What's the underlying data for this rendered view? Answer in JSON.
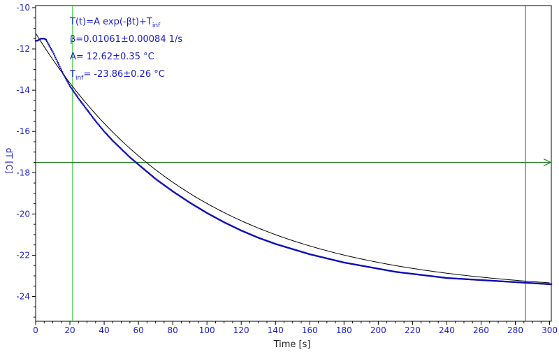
{
  "chart_data": {
    "type": "scatter",
    "xlabel": "Time [s]",
    "ylabel": "dT [C]",
    "xlim": [
      0,
      301
    ],
    "ylim": [
      -25.2,
      -9.9
    ],
    "xticks": [
      0,
      20,
      40,
      60,
      80,
      100,
      120,
      140,
      160,
      180,
      200,
      220,
      240,
      260,
      280,
      300
    ],
    "yticks": [
      -24,
      -22,
      -20,
      -18,
      -16,
      -14,
      -12,
      -10
    ],
    "grid": false,
    "legend": "none",
    "fit": {
      "model": "T(t)=A exp(-βt)+T_inf",
      "beta": 0.01061,
      "A": 12.62,
      "T_inf": -23.86
    },
    "annotations": [
      {
        "text": "T(t)=A exp(-βt)+T",
        "sub": "inf",
        "after": ""
      },
      {
        "text": "β=0.01061±0.00084 1/s",
        "sub": "",
        "after": ""
      },
      {
        "text": "A= 12.62±0.35 °C",
        "sub": "",
        "after": ""
      },
      {
        "text": "T",
        "sub": "inf",
        "after": "= -23.86±0.26 °C"
      }
    ],
    "series": [
      {
        "x": [
          0,
          1,
          2,
          3,
          4,
          5,
          6,
          7,
          8,
          9,
          10,
          12,
          14,
          16,
          18,
          20,
          25,
          30,
          35,
          40,
          45,
          50,
          55,
          60,
          65,
          70,
          80,
          90,
          100,
          110,
          120,
          130,
          140,
          150,
          160,
          170,
          180,
          190,
          200,
          210,
          220,
          230,
          240,
          250,
          260,
          270,
          280,
          290,
          300
        ],
        "values": [
          -11.6,
          -11.6,
          -11.55,
          -11.5,
          -11.5,
          -11.5,
          -11.55,
          -11.7,
          -11.85,
          -12.0,
          -12.15,
          -12.5,
          -12.85,
          -13.2,
          -13.5,
          -13.8,
          -14.4,
          -14.95,
          -15.5,
          -16.0,
          -16.45,
          -16.85,
          -17.25,
          -17.6,
          -17.95,
          -18.3,
          -18.9,
          -19.45,
          -19.95,
          -20.4,
          -20.8,
          -21.15,
          -21.45,
          -21.7,
          -21.95,
          -22.15,
          -22.35,
          -22.5,
          -22.65,
          -22.8,
          -22.9,
          -23.0,
          -23.1,
          -23.15,
          -23.2,
          -23.25,
          -23.3,
          -23.35,
          -23.4
        ],
        "color": "#0a0ab4"
      }
    ],
    "fit_line_color": "#000000",
    "cursors": [
      {
        "orientation": "vertical",
        "x": 21.5,
        "color": "#33cc33"
      },
      {
        "orientation": "vertical",
        "x": 286,
        "color": "#b22222"
      },
      {
        "orientation": "horizontal",
        "y": -17.5,
        "color": "#1a7a1a"
      }
    ]
  }
}
